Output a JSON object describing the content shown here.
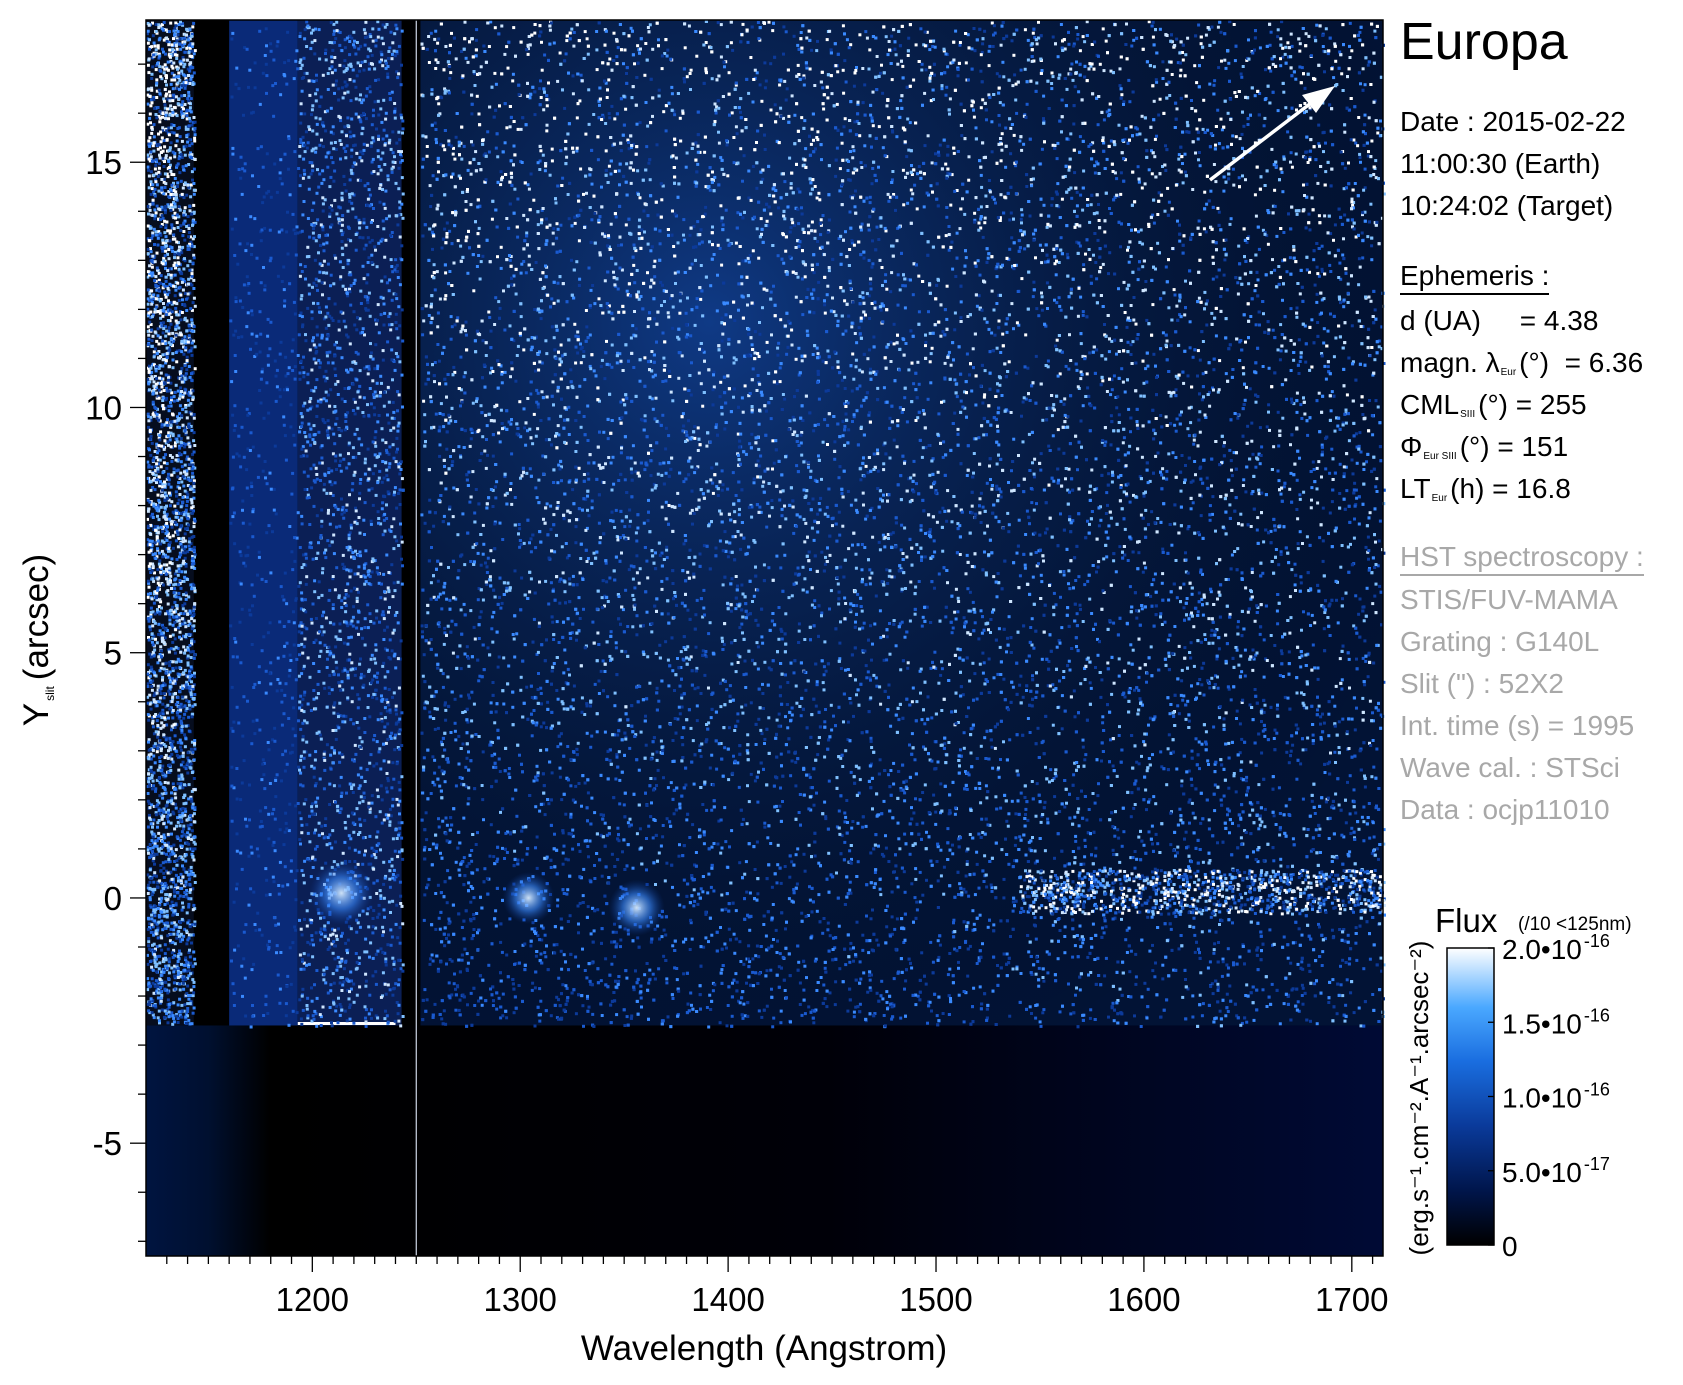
{
  "chart_data": {
    "type": "heatmap",
    "title": "Europa",
    "xlabel": "Wavelength (Angstrom)",
    "ylabel_main": "Y",
    "ylabel_sub": "slit",
    "ylabel_unit": "(arcsec)",
    "xlim": [
      1120,
      1715
    ],
    "ylim": [
      -7.3,
      17.9
    ],
    "x_ticks": [
      1200,
      1300,
      1400,
      1500,
      1600,
      1700
    ],
    "y_ticks": [
      15,
      10,
      5,
      0,
      -5
    ],
    "y_tick_labels": [
      "15",
      "10",
      "5",
      "0",
      "-5"
    ],
    "colorbar": {
      "title": "Flux",
      "note": "(/10 <125nm)",
      "unit_label": "(erg.s⁻¹.cm⁻².A⁻¹.arcsec⁻²)",
      "range": [
        0,
        2e-16
      ],
      "tick_values": [
        2e-16,
        1.5e-16,
        1e-16,
        5e-17,
        0
      ],
      "tick_labels": [
        {
          "mantissa": "2.0•10",
          "exponent": "-16"
        },
        {
          "mantissa": "1.5•10",
          "exponent": "-16"
        },
        {
          "mantissa": "1.0•10",
          "exponent": "-16"
        },
        {
          "mantissa": "5.0•10",
          "exponent": "-17"
        },
        {
          "mantissa": "0",
          "exponent": ""
        }
      ],
      "colors": [
        "#000000",
        "#002a80",
        "#1060d0",
        "#3fa0ff",
        "#ffffff"
      ]
    }
  },
  "info": {
    "title": "Europa",
    "date": "Date : 2015-02-22",
    "time_earth": "11:00:30 (Earth)",
    "time_target": "10:24:02 (Target)",
    "ephemeris_header": "Ephemeris :",
    "d_ua": "d (UA)     = 4.38",
    "magn_pre": "magn. λ",
    "magn_sub": "Eur",
    "magn_post": "(°)  = 6.36",
    "cml_pre": "CML",
    "cml_sub": "SIII",
    "cml_post": "(°) = 255",
    "phi_pre": "Φ",
    "phi_sub": "Eur SIII",
    "phi_post": "(°) = 151",
    "lt_pre": "LT",
    "lt_sub": "Eur",
    "lt_post": "(h) = 16.8",
    "hst_header": "HST spectroscopy :",
    "instrument": "STIS/FUV-MAMA",
    "grating": "Grating : G140L",
    "slit": "Slit (\") : 52X2",
    "int_time": "Int. time (s) = 1995",
    "wave_cal": "Wave cal. : STSci",
    "dataset": "Data : ocjp11010"
  }
}
